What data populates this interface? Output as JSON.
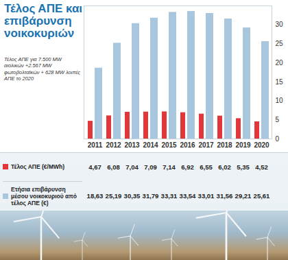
{
  "chart_data": {
    "type": "bar",
    "title": "Τέλος ΑΠΕ και επιβάρυνση νοικοκυριών",
    "subtitle": "Τέλος ΑΠΕ για 7.500 MW αιολικών +2.567 MW φωτοβολταϊκών + 628 MW λοιπές ΑΠΕ το 2020",
    "categories": [
      "2011",
      "2012",
      "2013",
      "2014",
      "2015",
      "2016",
      "2017",
      "2018",
      "2019",
      "2020"
    ],
    "series": [
      {
        "name": "Τέλος ΑΠΕ (€/MWh)",
        "color": "#e2373a",
        "values": [
          4.67,
          6.08,
          7.04,
          7.09,
          7.14,
          6.92,
          6.55,
          6.02,
          5.35,
          4.52
        ],
        "value_labels": [
          "4,67",
          "6,08",
          "7,04",
          "7,09",
          "7,14",
          "6,92",
          "6,55",
          "6,02",
          "5,35",
          "4,52"
        ]
      },
      {
        "name": "Ετήσια επιβάρυνση μέσου νοικοκυριού από τέλος ΑΠΕ (€)",
        "color": "#a8c6de",
        "values": [
          18.63,
          25.19,
          30.35,
          31.79,
          33.31,
          33.54,
          33.01,
          31.56,
          29.21,
          25.61
        ],
        "value_labels": [
          "18,63",
          "25,19",
          "30,35",
          "31,79",
          "33,31",
          "33,54",
          "33,01",
          "31,56",
          "29,21",
          "25,61"
        ]
      }
    ],
    "ylim": [
      0,
      35
    ],
    "yticks": [
      0,
      5,
      10,
      15,
      20,
      25,
      30
    ],
    "grid": false,
    "data_labels": true
  }
}
